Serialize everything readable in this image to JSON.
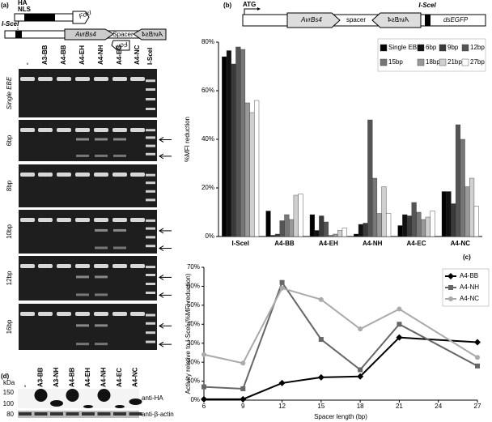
{
  "panel_labels": [
    "(a)",
    "(b)",
    "(c)",
    "(d)"
  ],
  "construct_a": {
    "tags": [
      "HA",
      "NLS"
    ],
    "site": "I-SceI",
    "left": "AvrBs4",
    "spacer": "Spacer",
    "right": "AvrBs4",
    "nuclease": [
      "FokI",
      "FokI"
    ]
  },
  "gel": {
    "lanes": [
      "-",
      "A3-BB",
      "A4-BB",
      "A4-EH",
      "A4-NH",
      "A4-EC",
      "A4-NC",
      "I-SceI"
    ],
    "rows": [
      "Single EBE",
      "6bp",
      "8bp",
      "10bp",
      "12bp",
      "16bp"
    ]
  },
  "construct_b": {
    "start": "ATG",
    "left": "AvrBs4",
    "spacer": "spacer",
    "right": "AvrBs4",
    "site": "I-SceI",
    "reporter": "dsEGFP"
  },
  "western": {
    "unit": "kDa",
    "markers": [
      "150",
      "100",
      "80"
    ],
    "lanes": [
      "-",
      "A3-BB",
      "A3-NH",
      "A4-BB",
      "A4-EH",
      "A4-NH",
      "A4-EC",
      "A4-NC"
    ],
    "antibodies": [
      "anti-HA",
      "anti-β-actin"
    ]
  },
  "chart_data": [
    {
      "type": "bar",
      "y_label": "%MFI reduction",
      "categories": [
        "I-SceI",
        "A4-BB",
        "A4-EH",
        "A4-NH",
        "A4-EC",
        "A4-NC"
      ],
      "series": [
        {
          "name": "Single EBE",
          "color": "#000000",
          "values": [
            74,
            10.5,
            9,
            1,
            4.5,
            18.5
          ]
        },
        {
          "name": "6bp",
          "color": "#111111",
          "values": [
            76.5,
            0.5,
            2.5,
            5,
            9,
            18.5
          ]
        },
        {
          "name": "9bp",
          "color": "#3a3a3a",
          "values": [
            71,
            1,
            8.5,
            5.5,
            8.5,
            13.5
          ]
        },
        {
          "name": "12bp",
          "color": "#555555",
          "values": [
            78,
            6.5,
            6,
            48,
            14,
            46
          ]
        },
        {
          "name": "15bp",
          "color": "#777777",
          "values": [
            77,
            9,
            0.5,
            24,
            10,
            40
          ]
        },
        {
          "name": "18bp",
          "color": "#999999",
          "values": [
            55,
            7,
            1,
            9.5,
            7,
            20.5
          ]
        },
        {
          "name": "21bp",
          "color": "#d0d0d0",
          "values": [
            51,
            17,
            2.5,
            20.5,
            8,
            24
          ]
        },
        {
          "name": "27bp",
          "color": "#ffffff",
          "values": [
            56,
            17.5,
            3.5,
            9.5,
            10.5,
            12.5
          ]
        }
      ],
      "ylim": [
        0,
        80
      ],
      "yticks": [
        {
          "value": 0,
          "label": "0%"
        },
        {
          "value": 20,
          "label": "20%"
        },
        {
          "value": 40,
          "label": "40%"
        },
        {
          "value": 60,
          "label": "60%"
        },
        {
          "value": 80,
          "label": "80%"
        }
      ],
      "grid": false,
      "legend": "top-right"
    },
    {
      "type": "line",
      "y_label": "Activity relative to I-SceI (%MFI reduction)",
      "x_label": "Spacer length (bp)",
      "x": [
        6,
        9,
        12,
        15,
        18,
        21,
        27
      ],
      "series": [
        {
          "name": "A4-BB",
          "color": "#000000",
          "marker": "diamond",
          "values": [
            0.5,
            0.5,
            9,
            12,
            12.5,
            33,
            30.5
          ]
        },
        {
          "name": "A4-NH",
          "color": "#666666",
          "marker": "square",
          "values": [
            7,
            6,
            62,
            32,
            16,
            40,
            18
          ]
        },
        {
          "name": "A4-NC",
          "color": "#aaaaaa",
          "marker": "circle",
          "values": [
            24,
            19.5,
            59,
            53,
            37.5,
            48,
            22.5
          ]
        }
      ],
      "xlim": [
        6,
        27
      ],
      "xticks": [
        6,
        9,
        12,
        15,
        18,
        21,
        24,
        27
      ],
      "ylim": [
        0,
        70
      ],
      "yticks": [
        {
          "value": 0,
          "label": "0%"
        },
        {
          "value": 10,
          "label": "10%"
        },
        {
          "value": 20,
          "label": "20%"
        },
        {
          "value": 30,
          "label": "30%"
        },
        {
          "value": 40,
          "label": "40%"
        },
        {
          "value": 50,
          "label": "50%"
        },
        {
          "value": 60,
          "label": "60%"
        },
        {
          "value": 70,
          "label": "70%"
        }
      ],
      "grid": false,
      "legend": "top-right"
    }
  ]
}
